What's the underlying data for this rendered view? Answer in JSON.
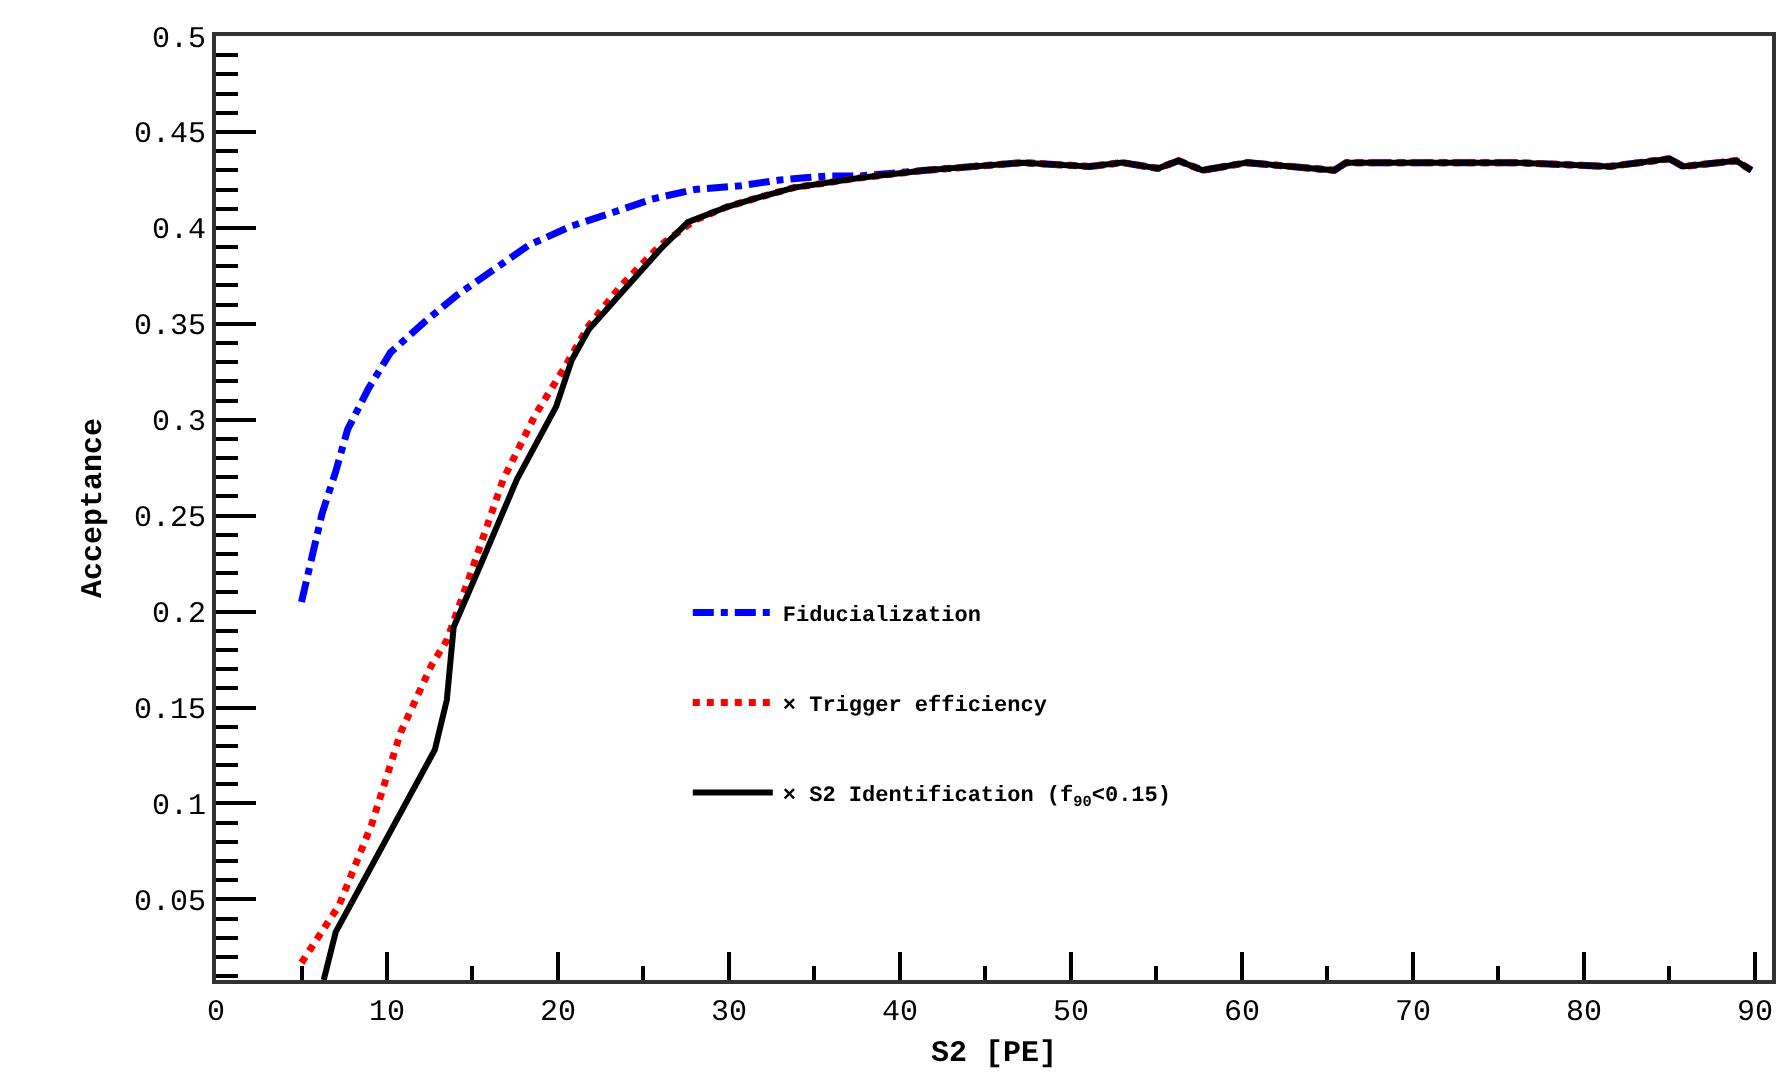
{
  "chart_data": {
    "type": "line",
    "xlabel": "S2 [PE]",
    "ylabel": "Acceptance",
    "xlim": [
      0,
      91
    ],
    "ylim": [
      0.008,
      0.5
    ],
    "xticks": [
      0,
      10,
      20,
      30,
      40,
      50,
      60,
      70,
      80,
      90
    ],
    "yticks": [
      0.05,
      0.1,
      0.15,
      0.2,
      0.25,
      0.3,
      0.35,
      0.4,
      0.45,
      0.5
    ],
    "grid": false,
    "legend": "bottom",
    "marker": "none",
    "series": [
      {
        "name": "Fiducialization",
        "color": "#0000ff",
        "line_style": "dashdot",
        "x": [
          5.0,
          6.2,
          7.0,
          7.7,
          8.9,
          10.2,
          12.2,
          14.1,
          16.2,
          18.3,
          20.8,
          23.2,
          25.5,
          28,
          30.7,
          33,
          35.7,
          37.6,
          41.5,
          47.2,
          51.1,
          53,
          55.1,
          56.3,
          57.7,
          60.3,
          65.4,
          66.1,
          70.8,
          76.1,
          81.5,
          85,
          85.8,
          88.9,
          89.8
        ],
        "values": [
          0.205,
          0.251,
          0.273,
          0.295,
          0.316,
          0.335,
          0.351,
          0.365,
          0.378,
          0.391,
          0.401,
          0.408,
          0.415,
          0.42,
          0.422,
          0.425,
          0.427,
          0.427,
          0.43,
          0.434,
          0.432,
          0.434,
          0.431,
          0.435,
          0.43,
          0.434,
          0.43,
          0.434,
          0.434,
          0.434,
          0.432,
          0.436,
          0.432,
          0.435,
          0.43
        ]
      },
      {
        "name": "× Trigger efficiency",
        "color": "#ff0000",
        "line_style": "dotted",
        "x": [
          5.0,
          7.2,
          9.1,
          10.8,
          12.6,
          13.5,
          14.9,
          16.8,
          18.7,
          20.3,
          21.8,
          23.7,
          26,
          28,
          29.9,
          31.8,
          33.8,
          37.6,
          41.5,
          47.2,
          51.1,
          53,
          55.1,
          56.3,
          57.7,
          60.3,
          65.4,
          66.1,
          70.8,
          76.1,
          81.5,
          85,
          85.8,
          88.9,
          89.8
        ],
        "values": [
          0.017,
          0.047,
          0.089,
          0.137,
          0.172,
          0.185,
          0.22,
          0.269,
          0.303,
          0.326,
          0.349,
          0.37,
          0.391,
          0.404,
          0.411,
          0.416,
          0.421,
          0.426,
          0.43,
          0.434,
          0.432,
          0.434,
          0.431,
          0.435,
          0.43,
          0.434,
          0.43,
          0.434,
          0.434,
          0.434,
          0.432,
          0.436,
          0.432,
          0.435,
          0.43
        ]
      },
      {
        "name": "× S2 Identification (f$_{90}$<0.15)",
        "color": "#000000",
        "line_style": "solid",
        "x": [
          6.3,
          7.0,
          12.8,
          13.5,
          13.9,
          15.6,
          17.6,
          19.9,
          20.8,
          21.8,
          23.7,
          26,
          27.6,
          29.9,
          31.8,
          33.8,
          37.6,
          41.5,
          47.2,
          51.1,
          53,
          55.1,
          56.3,
          57.7,
          60.3,
          65.4,
          66.1,
          70.8,
          76.1,
          81.5,
          85,
          85.8,
          88.9,
          89.8
        ],
        "values": [
          0.008,
          0.033,
          0.128,
          0.154,
          0.192,
          0.227,
          0.269,
          0.307,
          0.331,
          0.347,
          0.366,
          0.389,
          0.403,
          0.411,
          0.416,
          0.421,
          0.426,
          0.43,
          0.434,
          0.432,
          0.434,
          0.431,
          0.435,
          0.43,
          0.434,
          0.43,
          0.434,
          0.434,
          0.434,
          0.432,
          0.436,
          0.432,
          0.435,
          0.43
        ]
      }
    ]
  }
}
